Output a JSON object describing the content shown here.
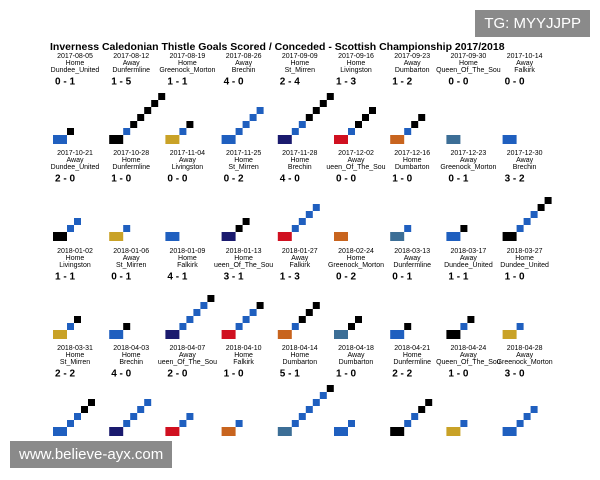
{
  "title": "Inverness Caledonian Thistle Goals Scored / Conceded - Scottish Championship 2017/2018",
  "matches": [
    {
      "date": "2017-08-05",
      "venue": "Home",
      "opponent": "Dundee_United",
      "score": "0 - 1"
    },
    {
      "date": "2017-08-12",
      "venue": "Away",
      "opponent": "Dunfermline",
      "score": "1 - 5"
    },
    {
      "date": "2017-08-19",
      "venue": "Home",
      "opponent": "Greenock_Morton",
      "score": "1 - 1"
    },
    {
      "date": "2017-08-26",
      "venue": "Away",
      "opponent": "Brechin",
      "score": "4 - 0"
    },
    {
      "date": "2017-09-09",
      "venue": "Home",
      "opponent": "St_Mirren",
      "score": "2 - 4"
    },
    {
      "date": "2017-09-16",
      "venue": "Home",
      "opponent": "Livingston",
      "score": "1 - 3"
    },
    {
      "date": "2017-09-23",
      "venue": "Away",
      "opponent": "Dumbarton",
      "score": "1 - 2"
    },
    {
      "date": "2017-09-30",
      "venue": "Home",
      "opponent": "Queen_Of_The_Sou",
      "score": "0 - 0"
    },
    {
      "date": "2017-10-14",
      "venue": "Away",
      "opponent": "Falkirk",
      "score": "0 - 0"
    },
    {
      "date": "2017-10-21",
      "venue": "Away",
      "opponent": "Dundee_United",
      "score": "2 - 0"
    },
    {
      "date": "2017-10-28",
      "venue": "Home",
      "opponent": "Dunfermline",
      "score": "1 - 0"
    },
    {
      "date": "2017-11-04",
      "venue": "Away",
      "opponent": "Livingston",
      "score": "0 - 0"
    },
    {
      "date": "2017-11-25",
      "venue": "Home",
      "opponent": "St_Mirren",
      "score": "0 - 2"
    },
    {
      "date": "2017-11-28",
      "venue": "Home",
      "opponent": "Brechin",
      "score": "4 - 0"
    },
    {
      "date": "2017-12-02",
      "venue": "Away",
      "opponent": "ueen_Of_The_Sou",
      "score": "0 - 0"
    },
    {
      "date": "2017-12-16",
      "venue": "Home",
      "opponent": "Dumbarton",
      "score": "1 - 0"
    },
    {
      "date": "2017-12-23",
      "venue": "Away",
      "opponent": "Greenock_Morton",
      "score": "0 - 1"
    },
    {
      "date": "2017-12-30",
      "venue": "Away",
      "opponent": "Brechin",
      "score": "3 - 2"
    },
    {
      "date": "2018-01-02",
      "venue": "Home",
      "opponent": "Livingston",
      "score": "1 - 1"
    },
    {
      "date": "2018-01-06",
      "venue": "Away",
      "opponent": "St_Mirren",
      "score": "0 - 1"
    },
    {
      "date": "2018-01-09",
      "venue": "Home",
      "opponent": "Falkirk",
      "score": "4 - 1"
    },
    {
      "date": "2018-01-13",
      "venue": "Home",
      "opponent": "ueen_Of_The_Sou",
      "score": "3 - 1"
    },
    {
      "date": "2018-01-27",
      "venue": "Away",
      "opponent": "Falkirk",
      "score": "1 - 3"
    },
    {
      "date": "2018-02-24",
      "venue": "Home",
      "opponent": "Greenock_Morton",
      "score": "0 - 2"
    },
    {
      "date": "2018-03-13",
      "venue": "Away",
      "opponent": "Dunfermline",
      "score": "0 - 1"
    },
    {
      "date": "2018-03-17",
      "venue": "Away",
      "opponent": "Dundee_United",
      "score": "1 - 1"
    },
    {
      "date": "2018-03-27",
      "venue": "Home",
      "opponent": "Dundee_United",
      "score": "1 - 0"
    },
    {
      "date": "2018-03-31",
      "venue": "Home",
      "opponent": "St_Mirren",
      "score": "2 - 2"
    },
    {
      "date": "2018-04-03",
      "venue": "Home",
      "opponent": "Brechin",
      "score": "4 - 0"
    },
    {
      "date": "2018-04-07",
      "venue": "Away",
      "opponent": "ueen_Of_The_Sou",
      "score": "2 - 0"
    },
    {
      "date": "2018-04-10",
      "venue": "Home",
      "opponent": "Falkirk",
      "score": "1 - 0"
    },
    {
      "date": "2018-04-14",
      "venue": "Home",
      "opponent": "Dumbarton",
      "score": "5 - 1"
    },
    {
      "date": "2018-04-18",
      "venue": "Away",
      "opponent": "Dumbarton",
      "score": "1 - 0"
    },
    {
      "date": "2018-04-21",
      "venue": "Home",
      "opponent": "Dunfermline",
      "score": "2 - 2"
    },
    {
      "date": "2018-04-24",
      "venue": "Away",
      "opponent": "Queen_Of_The_Sou",
      "score": "1 - 0"
    },
    {
      "date": "2018-04-28",
      "venue": "Away",
      "opponent": "Greenock_Morton",
      "score": "3 - 0"
    }
  ],
  "watermarks": {
    "top": "TG: MYYJJPP",
    "bottom": "www.believe-ayx.com"
  }
}
